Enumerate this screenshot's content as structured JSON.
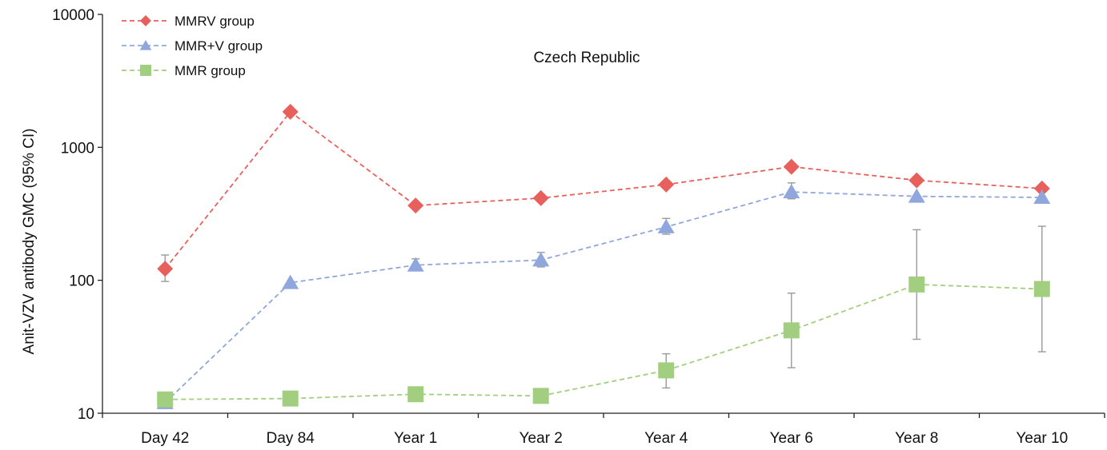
{
  "chart_data": {
    "type": "line",
    "title": "Czech Republic",
    "ylabel": "Anit-VZV antibody GMC (95% CI)",
    "xlabel": "",
    "y_scale": "log",
    "ylim": [
      10,
      10000
    ],
    "y_ticks": [
      10,
      100,
      1000,
      10000
    ],
    "grid": false,
    "legend_position": "top-left",
    "categories": [
      "Day 42",
      "Day 84",
      "Year 1",
      "Year 2",
      "Year 4",
      "Year 6",
      "Year 8",
      "Year 10"
    ],
    "series": [
      {
        "name": "MMRV group",
        "color": "#e8605c",
        "marker": "diamond",
        "values": [
          122,
          1850,
          365,
          415,
          525,
          715,
          565,
          490
        ],
        "ci_low": [
          98,
          null,
          null,
          null,
          null,
          null,
          null,
          null
        ],
        "ci_high": [
          155,
          null,
          null,
          null,
          null,
          null,
          null,
          null
        ]
      },
      {
        "name": "MMR+V group",
        "color": "#8fa7dd",
        "marker": "triangle",
        "values": [
          12,
          96,
          130,
          142,
          252,
          462,
          428,
          420
        ],
        "ci_low": [
          null,
          null,
          118,
          126,
          222,
          410,
          null,
          null
        ],
        "ci_high": [
          null,
          null,
          145,
          162,
          292,
          540,
          null,
          null
        ]
      },
      {
        "name": "MMR group",
        "color": "#a2cf7f",
        "marker": "square",
        "values": [
          12.7,
          12.9,
          13.9,
          13.5,
          21,
          42,
          93,
          86
        ],
        "ci_low": [
          null,
          null,
          null,
          null,
          15.5,
          22,
          36,
          29
        ],
        "ci_high": [
          null,
          null,
          null,
          null,
          28,
          80,
          240,
          255
        ]
      }
    ]
  }
}
